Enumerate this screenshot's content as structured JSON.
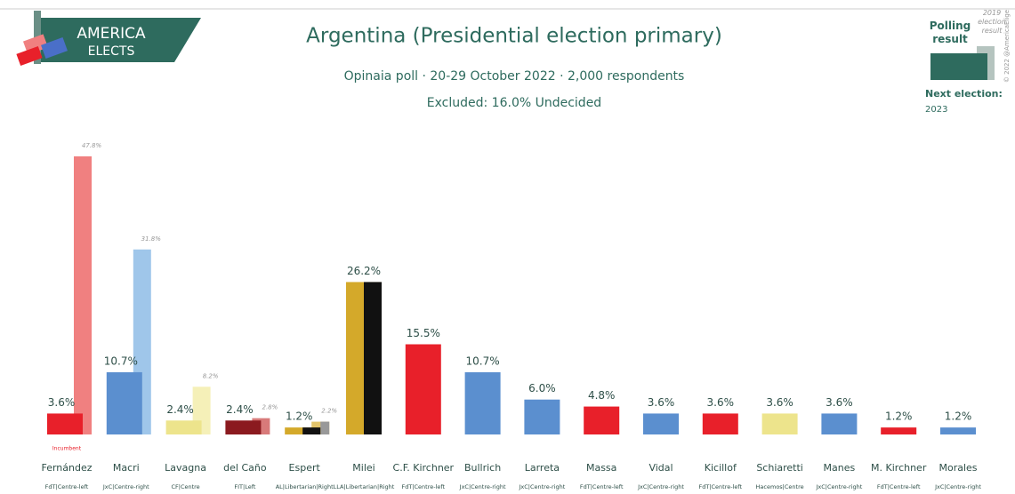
{
  "header": {
    "logo_top": "AMERICA",
    "logo_bottom": "ELECTS",
    "copyright": "© 2022 @AmericaElige"
  },
  "legend_box": {
    "next_election_label": "Next election:",
    "next_election_year": "2023"
  },
  "chart_data": {
    "type": "bar",
    "title": "Argentina (Presidential election primary)",
    "subtitle": "Opinaia poll · 20-29 October 2022 · 2,000 respondents",
    "note": "Excluded: 16.0% Undecided",
    "annotation": "Incumbent",
    "categories": [
      "Fernández",
      "Macri",
      "Lavagna",
      "del Caño",
      "Espert",
      "Milei",
      "C.F. Kirchner",
      "Bullrich",
      "Larreta",
      "Massa",
      "Vidal",
      "Kicillof",
      "Schiaretti",
      "Manes",
      "M. Kirchner",
      "Morales"
    ],
    "party_labels": [
      "FdT|Centre-left",
      "JxC|Centre-right",
      "CF|Centre",
      "FIT|Left",
      "AL|Libertarian|Right",
      "LLA|Libertarian|Right",
      "FdT|Centre-left",
      "JxC|Centre-right",
      "JxC|Centre-right",
      "FdT|Centre-left",
      "JxC|Centre-right",
      "FdT|Centre-left",
      "Hacemos|Centre",
      "JxC|Centre-right",
      "FdT|Centre-left",
      "JxC|Centre-right"
    ],
    "series": [
      {
        "name": "Polling result",
        "values": [
          3.6,
          10.7,
          2.4,
          2.4,
          1.2,
          26.2,
          15.5,
          10.7,
          6.0,
          4.8,
          3.6,
          3.6,
          3.6,
          3.6,
          1.2,
          1.2
        ],
        "value_labels": [
          "3.6%",
          "10.7%",
          "2.4%",
          "2.4%",
          "1.2%",
          "26.2%",
          "15.5%",
          "10.7%",
          "6.0%",
          "4.8%",
          "3.6%",
          "3.6%",
          "3.6%",
          "3.6%",
          "1.2%",
          "1.2%"
        ],
        "colors": [
          [
            "#e8202a"
          ],
          [
            "#5b8fcf"
          ],
          [
            "#ede48c"
          ],
          [
            "#8b1a1f"
          ],
          [
            "#d4a92a",
            "#111111"
          ],
          [
            "#d4a92a",
            "#111111"
          ],
          [
            "#e8202a"
          ],
          [
            "#5b8fcf"
          ],
          [
            "#5b8fcf"
          ],
          [
            "#e8202a"
          ],
          [
            "#5b8fcf"
          ],
          [
            "#e8202a"
          ],
          [
            "#ede48c"
          ],
          [
            "#5b8fcf"
          ],
          [
            "#e8202a"
          ],
          [
            "#5b8fcf"
          ]
        ],
        "legend_color": "#2e6b5e"
      },
      {
        "name": "2019 election result",
        "values": [
          47.8,
          31.8,
          8.2,
          2.8,
          2.2,
          null,
          null,
          null,
          null,
          null,
          null,
          null,
          null,
          null,
          null,
          null
        ],
        "value_labels": [
          "47.8%",
          "31.8%",
          "8.2%",
          "2.8%",
          "2.2%",
          null,
          null,
          null,
          null,
          null,
          null,
          null,
          null,
          null,
          null,
          null
        ],
        "colors": [
          [
            "#f08080"
          ],
          [
            "#9fc6ea"
          ],
          [
            "#f5f0b8"
          ],
          [
            "#d87a7a"
          ],
          [
            "#e2c46a",
            "#999999"
          ],
          null,
          null,
          null,
          null,
          null,
          null,
          null,
          null,
          null,
          null,
          null
        ],
        "legend_color": "#b5c4bf"
      }
    ]
  }
}
